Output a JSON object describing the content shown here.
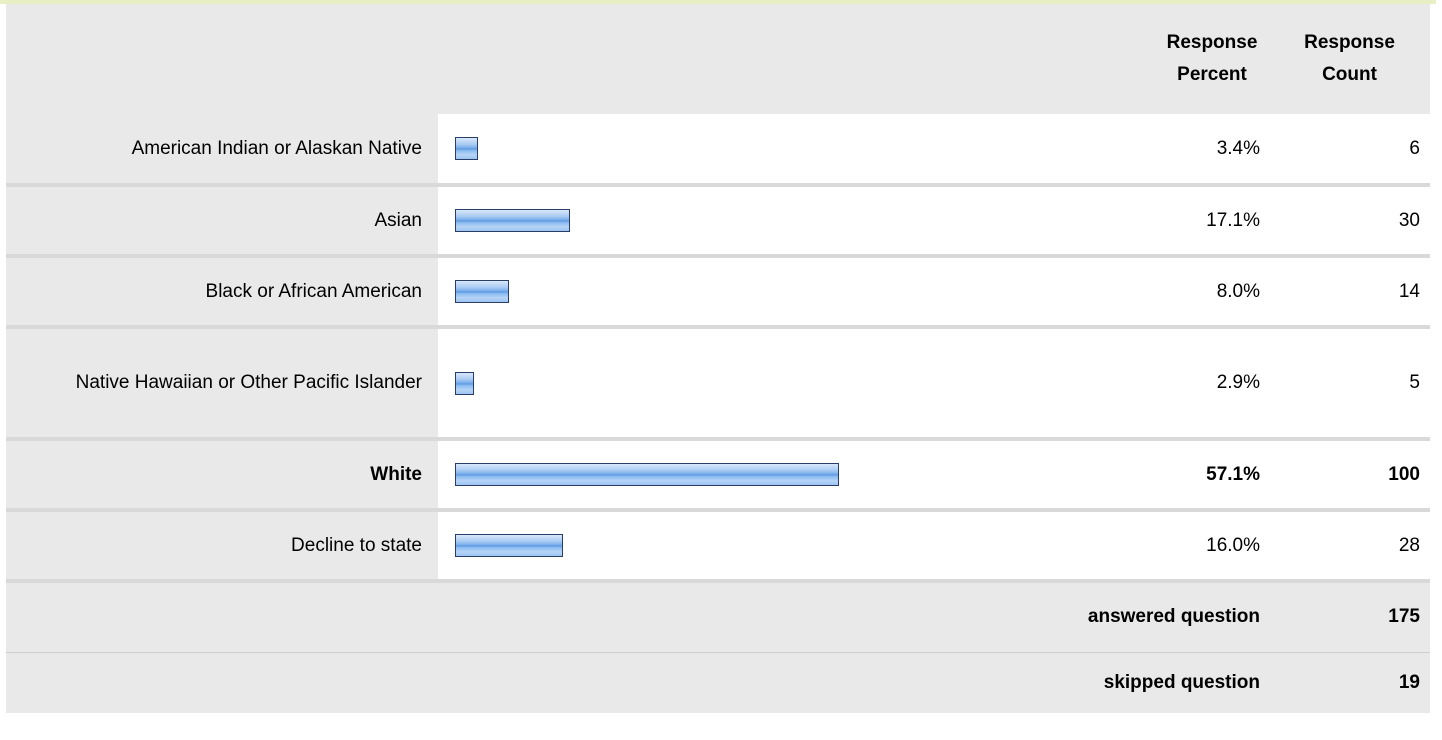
{
  "header": {
    "percent_label_line1": "Response",
    "percent_label_line2": "Percent",
    "count_label_line1": "Response",
    "count_label_line2": "Count"
  },
  "chart_data": {
    "type": "bar",
    "orientation": "horizontal",
    "categories": [
      "American Indian or Alaskan Native",
      "Asian",
      "Black or African American",
      "Native Hawaiian or Other Pacific Islander",
      "White",
      "Decline to state"
    ],
    "values": [
      3.4,
      17.1,
      8.0,
      2.9,
      57.1,
      16.0
    ],
    "percent_labels": [
      "3.4%",
      "17.1%",
      "8.0%",
      "2.9%",
      "57.1%",
      "16.0%"
    ],
    "counts": [
      "6",
      "30",
      "14",
      "5",
      "100",
      "28"
    ],
    "highlighted_category": "White",
    "xlim": [
      0,
      100
    ],
    "bar_color": "#7fb1ec",
    "bar_border_color": "#2a3d66"
  },
  "summary": {
    "answered_label": "answered question",
    "answered_value": "175",
    "skipped_label": "skipped question",
    "skipped_value": "19"
  },
  "colors": {
    "top_strip": "#e8efc2",
    "label_background": "#e9e9e9",
    "row_divider": "#d9d9d9"
  }
}
